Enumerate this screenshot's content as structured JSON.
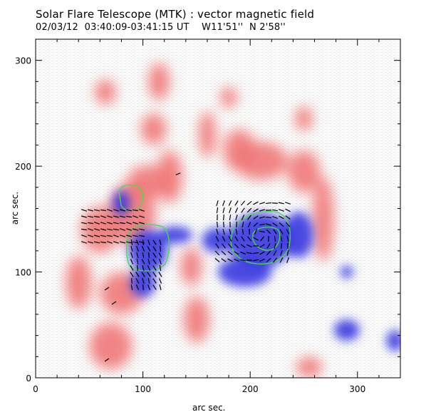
{
  "header": {
    "title": "Solar Flare Telescope (MTK) : vector magnetic field",
    "subtitle": "02/03/12  03:40:09-03:41:15 UT    W11'51''  N 2'58''"
  },
  "axes": {
    "xlabel": "arc sec.",
    "ylabel": "arc sec.",
    "x_ticks": [
      "0",
      "100",
      "200",
      "300"
    ],
    "y_ticks": [
      "0",
      "100",
      "200",
      "300"
    ],
    "x_range": [
      0,
      340
    ],
    "y_range": [
      0,
      320
    ]
  },
  "colors": {
    "positive_polarity": "#f07878",
    "negative_polarity": "#3838e0",
    "contour": "#40e040",
    "vectors": "#000000",
    "background": "#ffffff"
  },
  "magnetogram": {
    "positive": [
      {
        "x": 90,
        "y": 155,
        "rx": 22,
        "ry": 30
      },
      {
        "x": 60,
        "y": 140,
        "rx": 18,
        "ry": 22
      },
      {
        "x": 105,
        "y": 185,
        "rx": 20,
        "ry": 16
      },
      {
        "x": 125,
        "y": 190,
        "rx": 12,
        "ry": 25
      },
      {
        "x": 110,
        "y": 235,
        "rx": 12,
        "ry": 15
      },
      {
        "x": 160,
        "y": 230,
        "rx": 8,
        "ry": 22
      },
      {
        "x": 210,
        "y": 205,
        "rx": 25,
        "ry": 18
      },
      {
        "x": 190,
        "y": 215,
        "rx": 15,
        "ry": 20
      },
      {
        "x": 250,
        "y": 195,
        "rx": 15,
        "ry": 20
      },
      {
        "x": 268,
        "y": 150,
        "rx": 10,
        "ry": 40
      },
      {
        "x": 145,
        "y": 105,
        "rx": 10,
        "ry": 18
      },
      {
        "x": 80,
        "y": 80,
        "rx": 20,
        "ry": 20
      },
      {
        "x": 70,
        "y": 30,
        "rx": 20,
        "ry": 22
      },
      {
        "x": 40,
        "y": 90,
        "rx": 12,
        "ry": 25
      },
      {
        "x": 65,
        "y": 270,
        "rx": 10,
        "ry": 12
      },
      {
        "x": 180,
        "y": 265,
        "rx": 8,
        "ry": 10
      },
      {
        "x": 115,
        "y": 280,
        "rx": 10,
        "ry": 18
      },
      {
        "x": 250,
        "y": 245,
        "rx": 8,
        "ry": 12
      },
      {
        "x": 255,
        "y": 10,
        "rx": 12,
        "ry": 10
      },
      {
        "x": 150,
        "y": 55,
        "rx": 12,
        "ry": 22
      }
    ],
    "negative": [
      {
        "x": 105,
        "y": 120,
        "rx": 18,
        "ry": 20
      },
      {
        "x": 100,
        "y": 90,
        "rx": 12,
        "ry": 14
      },
      {
        "x": 80,
        "y": 165,
        "rx": 8,
        "ry": 12
      },
      {
        "x": 130,
        "y": 135,
        "rx": 16,
        "ry": 8
      },
      {
        "x": 210,
        "y": 130,
        "rx": 30,
        "ry": 26
      },
      {
        "x": 195,
        "y": 100,
        "rx": 25,
        "ry": 14
      },
      {
        "x": 245,
        "y": 135,
        "rx": 14,
        "ry": 22
      },
      {
        "x": 170,
        "y": 130,
        "rx": 15,
        "ry": 12
      },
      {
        "x": 290,
        "y": 100,
        "rx": 6,
        "ry": 6
      },
      {
        "x": 290,
        "y": 45,
        "rx": 12,
        "ry": 10
      },
      {
        "x": 335,
        "y": 35,
        "rx": 8,
        "ry": 10
      }
    ]
  }
}
